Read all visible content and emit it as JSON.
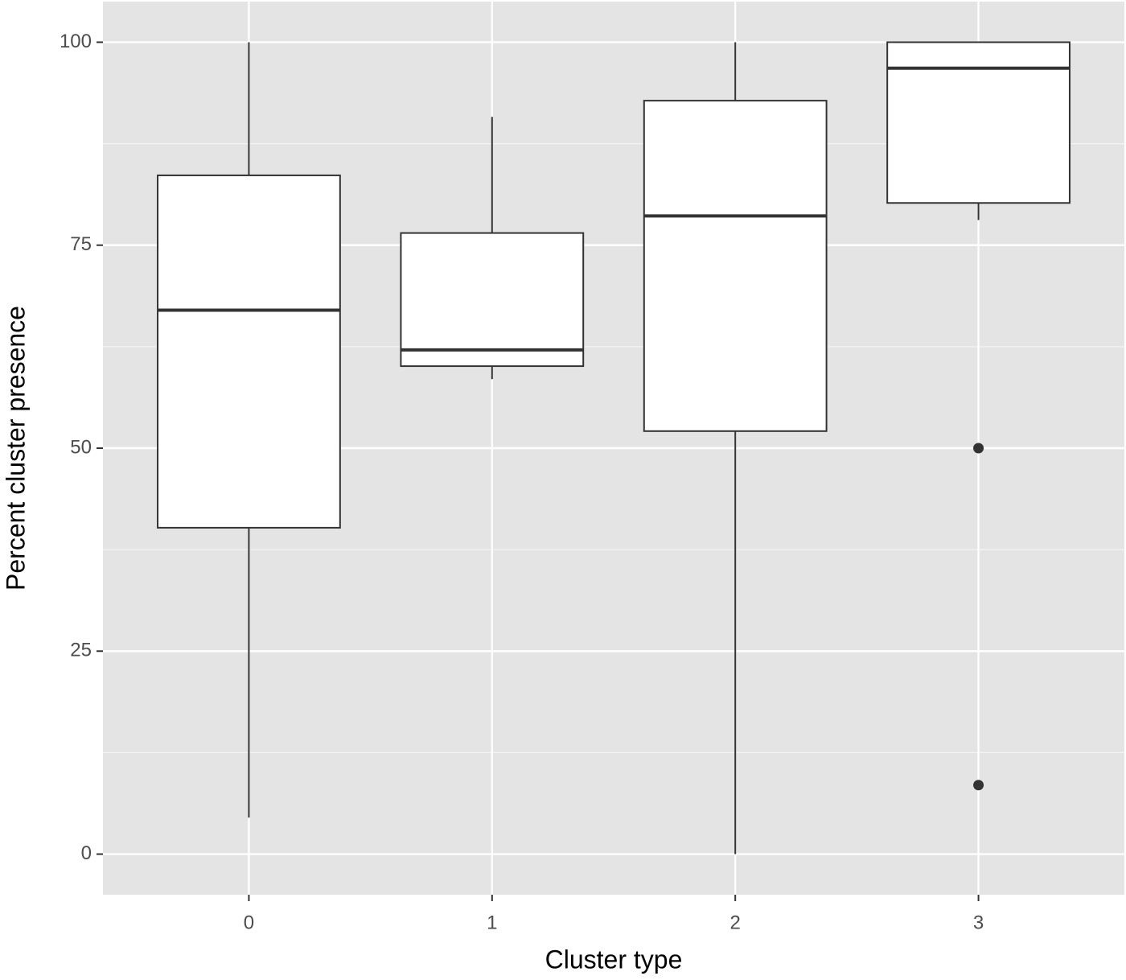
{
  "chart_data": {
    "type": "box",
    "xlabel": "Cluster type",
    "ylabel": "Percent cluster presence",
    "categories": [
      "0",
      "1",
      "2",
      "3"
    ],
    "whisker_low": [
      4.5,
      58.5,
      0,
      78.1
    ],
    "q1": [
      40.2,
      60.1,
      52.1,
      80.2
    ],
    "median": [
      67,
      62.1,
      78.6,
      96.8
    ],
    "q3": [
      83.6,
      76.5,
      92.8,
      100
    ],
    "whisker_high": [
      100,
      90.8,
      100,
      100
    ],
    "outliers": [
      [],
      [],
      [],
      [
        50,
        8.5
      ]
    ],
    "ylim": [
      -5,
      105
    ],
    "yticks": [
      0,
      25,
      50,
      75,
      100
    ],
    "yminor": [
      12.5,
      37.5,
      62.5,
      87.5
    ],
    "grid": true,
    "panel_color": "#e4e4e4",
    "box_fill": "#ffffff",
    "box_stroke": "#333333"
  }
}
